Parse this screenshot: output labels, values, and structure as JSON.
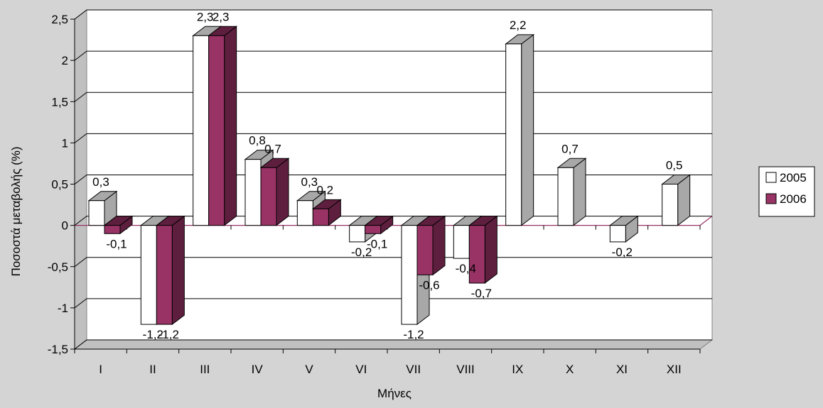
{
  "chart_data": {
    "type": "bar",
    "title": "",
    "xlabel": "Μήνες",
    "ylabel": "Ποσοστά μεταβολής (%)",
    "ylim": [
      -1.5,
      2.5
    ],
    "yticks": [
      2.5,
      2,
      1.5,
      1,
      0.5,
      0,
      -0.5,
      -1,
      -1.5
    ],
    "ytick_labels": [
      "2,5",
      "2",
      "1,5",
      "1",
      "0,5",
      "0",
      "-0,5",
      "-1",
      "-1,5"
    ],
    "grid": true,
    "legend": "right",
    "categories": [
      "I",
      "II",
      "III",
      "IV",
      "V",
      "VI",
      "VII",
      "VIII",
      "IX",
      "X",
      "XI",
      "XII"
    ],
    "series": [
      {
        "name": "2005",
        "color": "#ffffff",
        "side_color": "#a8a8a8",
        "values": [
          0.3,
          -1.2,
          2.3,
          0.8,
          0.3,
          -0.2,
          -1.2,
          -0.4,
          2.2,
          0.7,
          -0.2,
          0.5
        ],
        "labels": [
          "0,3",
          "-1,2",
          "2,3",
          "0,8",
          "0,3",
          "-0,2",
          "-1,2",
          "-0,4",
          "2,2",
          "0,7",
          "-0,2",
          "0,5"
        ]
      },
      {
        "name": "2006",
        "color": "#993366",
        "side_color": "#5e1f3e",
        "values": [
          -0.1,
          -1.2,
          2.3,
          0.7,
          0.2,
          -0.1,
          -0.6,
          -0.7,
          null,
          null,
          null,
          null
        ],
        "labels": [
          "-0,1",
          "-1,2",
          "2,3",
          "0,7",
          "0,2",
          "-0,1",
          "-0,6",
          "-0,7",
          "",
          "",
          "",
          ""
        ]
      }
    ]
  }
}
